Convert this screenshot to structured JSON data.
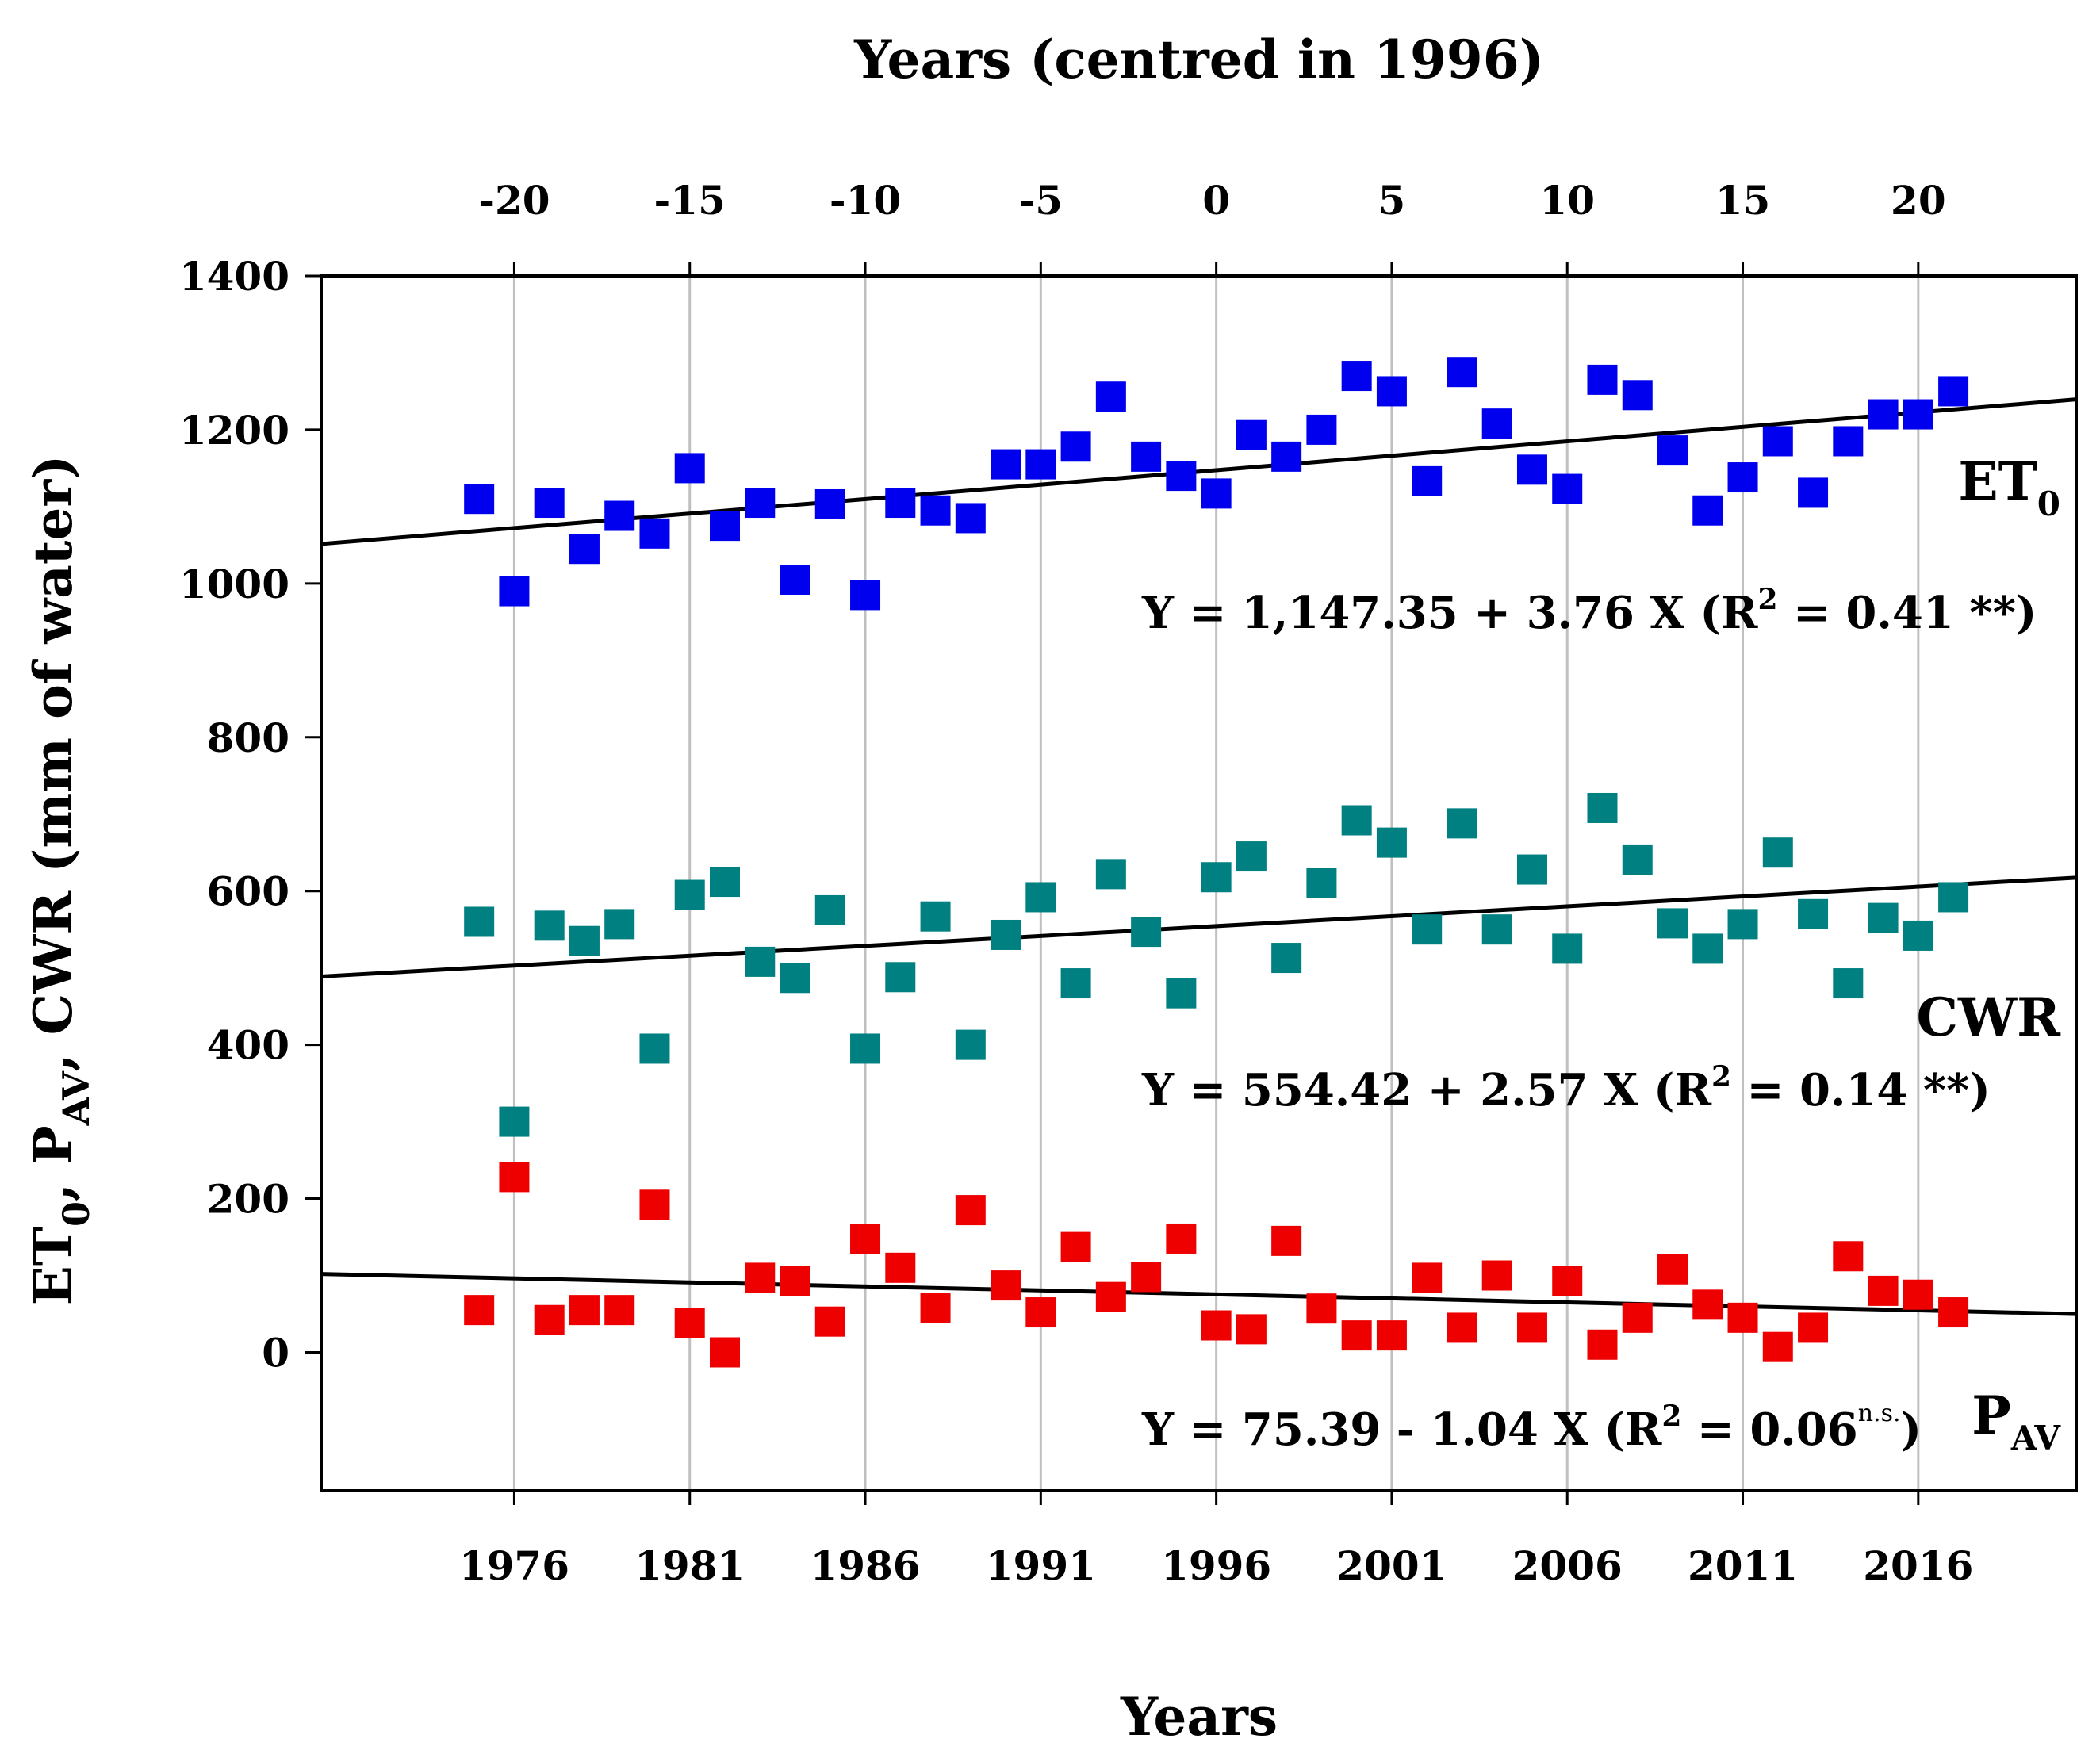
{
  "chart_data": {
    "type": "scatter",
    "title": "Years (centred in 1996)",
    "xlabel": "Years",
    "ylabel_parts": [
      "ET",
      "0",
      ", P",
      "AV",
      ", CWR (mm of water)"
    ],
    "x_range": [
      1970.5,
      2020.5
    ],
    "ylim": [
      -180,
      1400
    ],
    "grid": "vertical",
    "x_ticks": [
      1976,
      1981,
      1986,
      1991,
      1996,
      2001,
      2006,
      2011,
      2016
    ],
    "x_tick_labels": [
      "1976",
      "1981",
      "1986",
      "1991",
      "1996",
      "2001",
      "2006",
      "2011",
      "2016"
    ],
    "top_ticks": [
      -20,
      -15,
      -10,
      -5,
      0,
      5,
      10,
      15,
      20
    ],
    "top_tick_labels": [
      "-20",
      "-15",
      "-10",
      "-5",
      "0",
      "5",
      "10",
      "15",
      "20"
    ],
    "y_ticks": [
      0,
      200,
      400,
      600,
      800,
      1000,
      1200,
      1400
    ],
    "y_tick_labels": [
      "0",
      "200",
      "400",
      "600",
      "800",
      "1000",
      "1200",
      "1400"
    ],
    "x": [
      1975,
      1976,
      1977,
      1978,
      1979,
      1980,
      1981,
      1982,
      1983,
      1984,
      1985,
      1986,
      1987,
      1988,
      1989,
      1990,
      1991,
      1992,
      1993,
      1994,
      1995,
      1996,
      1997,
      1998,
      1999,
      2000,
      2001,
      2002,
      2003,
      2004,
      2005,
      2006,
      2007,
      2008,
      2009,
      2010,
      2011,
      2012,
      2013,
      2014,
      2015,
      2016,
      2017
    ],
    "series": [
      {
        "label_main": "ET",
        "label_sub": "0",
        "color": "#0000ee",
        "values": [
          1110,
          990,
          1105,
          1045,
          1088,
          1065,
          1150,
          1075,
          1105,
          1005,
          1103,
          985,
          1105,
          1095,
          1085,
          1155,
          1155,
          1178,
          1243,
          1165,
          1140,
          1117,
          1193,
          1165,
          1200,
          1270,
          1250,
          1133,
          1275,
          1208,
          1148,
          1123,
          1265,
          1245,
          1173,
          1095,
          1138,
          1185,
          1118,
          1185,
          1220,
          1220,
          1250
        ],
        "fit": {
          "intercept": 1147.35,
          "slope": 3.76
        },
        "eq_main": "Y = 1,147.35 + 3.76 X (R",
        "eq_sup": "2",
        "eq_end": " = 0.41 **)",
        "eq_ns": ""
      },
      {
        "label_main": "CWR",
        "label_sub": "",
        "color": "#008080",
        "values": [
          560,
          300,
          555,
          535,
          557,
          395,
          595,
          612,
          508,
          487,
          575,
          395,
          488,
          567,
          400,
          543,
          592,
          480,
          622,
          547,
          467,
          618,
          645,
          513,
          610,
          692,
          663,
          550,
          688,
          550,
          628,
          525,
          708,
          640,
          558,
          525,
          557,
          650,
          570,
          480,
          565,
          542,
          592
        ],
        "fit": {
          "intercept": 554.42,
          "slope": 2.57
        },
        "eq_main": "Y = 554.42 + 2.57 X (R",
        "eq_sup": "2",
        "eq_end": " = 0.14 **)",
        "eq_ns": ""
      },
      {
        "label_main": "P",
        "label_sub": "AV",
        "color": "#ee0000",
        "values": [
          55,
          228,
          42,
          55,
          55,
          192,
          38,
          0,
          97,
          93,
          40,
          147,
          110,
          58,
          185,
          87,
          52,
          137,
          72,
          98,
          148,
          35,
          30,
          145,
          57,
          22,
          22,
          97,
          32,
          100,
          32,
          93,
          10,
          45,
          108,
          62,
          45,
          7,
          32,
          125,
          80,
          75,
          52
        ],
        "fit": {
          "intercept": 75.39,
          "slope": -1.04
        },
        "eq_main": "Y = 75.39 - 1.04 X (R",
        "eq_sup": "2",
        "eq_end": " = 0.06",
        "eq_ns": "n.s.",
        "eq_close": ")"
      }
    ]
  }
}
